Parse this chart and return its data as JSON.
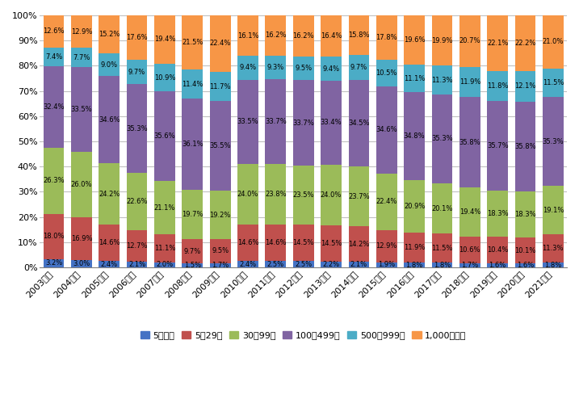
{
  "years": [
    "2003年卒",
    "2004年卒",
    "2005年卒",
    "2006年卒",
    "2007年卒",
    "2008年卒",
    "2009年卒",
    "2010年卒",
    "2011年卒",
    "2012年卒",
    "2013年卒",
    "2014年卒",
    "2015年卒",
    "2016年卒",
    "2017年卒",
    "2018年卒",
    "2019年卒",
    "2020年卒",
    "2021年卒"
  ],
  "categories": [
    "5人未満",
    "5～29人",
    "30～99人",
    "100～499人",
    "500～999人",
    "1,000人以上"
  ],
  "colors": [
    "#4472C4",
    "#C0504D",
    "#9BBB59",
    "#8064A2",
    "#4BACC6",
    "#F79646"
  ],
  "data": {
    "5人未満": [
      3.2,
      3.0,
      2.4,
      2.1,
      2.0,
      1.5,
      1.7,
      2.4,
      2.5,
      2.5,
      2.2,
      2.1,
      1.9,
      1.8,
      1.8,
      1.7,
      1.6,
      1.6,
      1.8
    ],
    "5～29人": [
      18.0,
      16.9,
      14.6,
      12.7,
      11.1,
      9.7,
      9.5,
      14.6,
      14.6,
      14.5,
      14.5,
      14.2,
      12.9,
      11.9,
      11.5,
      10.6,
      10.4,
      10.1,
      11.3
    ],
    "30～99人": [
      26.3,
      26.0,
      24.2,
      22.6,
      21.1,
      19.7,
      19.2,
      24.0,
      23.8,
      23.5,
      24.0,
      23.7,
      22.4,
      20.9,
      20.1,
      19.4,
      18.3,
      18.3,
      19.1
    ],
    "100～499人": [
      32.4,
      33.5,
      34.6,
      35.3,
      35.6,
      36.1,
      35.5,
      33.5,
      33.7,
      33.7,
      33.4,
      34.5,
      34.6,
      34.8,
      35.3,
      35.8,
      35.7,
      35.8,
      35.3
    ],
    "500～999人": [
      7.4,
      7.7,
      9.0,
      9.7,
      10.9,
      11.4,
      11.7,
      9.4,
      9.3,
      9.5,
      9.4,
      9.7,
      10.5,
      11.1,
      11.3,
      11.9,
      11.8,
      12.1,
      11.5
    ],
    "1,000人以上": [
      12.6,
      12.9,
      15.2,
      17.6,
      19.4,
      21.5,
      22.4,
      16.1,
      16.2,
      16.2,
      16.4,
      15.8,
      17.8,
      19.6,
      19.9,
      20.7,
      22.1,
      22.2,
      21.0
    ]
  },
  "ylim": [
    0,
    100
  ],
  "yticks": [
    0,
    10,
    20,
    30,
    40,
    50,
    60,
    70,
    80,
    90,
    100
  ],
  "ytick_labels": [
    "0%",
    "10%",
    "20%",
    "30%",
    "40%",
    "50%",
    "60%",
    "70%",
    "80%",
    "90%",
    "100%"
  ],
  "fontsize_tick": 8,
  "fontsize_label": 6.0,
  "fontsize_legend": 8,
  "bar_width": 0.75,
  "bg_color": "#FFFFFF",
  "plot_bg": "#FFFFFF",
  "grid_color": "#C0C0C0"
}
